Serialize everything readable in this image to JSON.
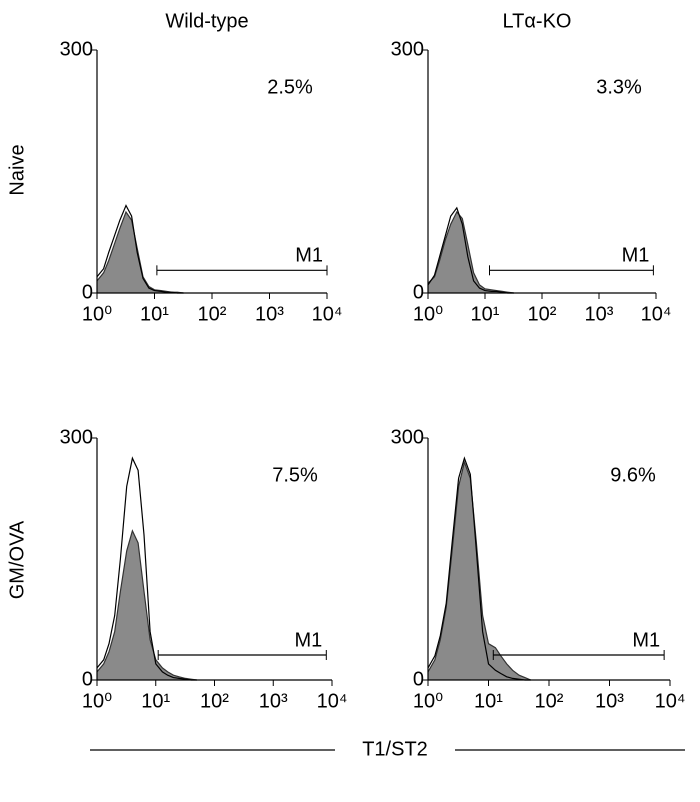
{
  "figure": {
    "row_labels": [
      "Naive",
      "GM/OVA"
    ],
    "x_axis_label": "T1/ST2"
  },
  "chart_data": [
    {
      "type": "histogram-overlay",
      "title": "Wild-type",
      "annotation": "2.5%",
      "xscale": "log",
      "xlim": [
        1,
        10000
      ],
      "ylim": [
        0,
        300
      ],
      "xticks": [
        {
          "value": 1,
          "label": "10⁰"
        },
        {
          "value": 10,
          "label": "10¹"
        },
        {
          "value": 100,
          "label": "10²"
        },
        {
          "value": 1000,
          "label": "10³"
        },
        {
          "value": 10000,
          "label": "10⁴"
        }
      ],
      "yticks": [
        0,
        300
      ],
      "gate": {
        "label": "M1",
        "range": [
          11,
          10000
        ],
        "y": 28
      },
      "x": [
        1,
        1.3,
        1.6,
        2,
        2.5,
        3.2,
        4,
        5,
        6.3,
        8,
        10,
        13,
        16,
        20,
        25,
        32
      ],
      "series": [
        {
          "color": "#8a8a8a",
          "filled": true,
          "values": [
            15,
            25,
            40,
            60,
            80,
            100,
            90,
            55,
            20,
            8,
            4,
            3,
            2,
            1,
            1,
            0
          ]
        },
        {
          "color": "#000000",
          "filled": false,
          "values": [
            20,
            30,
            50,
            70,
            90,
            108,
            95,
            50,
            18,
            6,
            3,
            2,
            1,
            1,
            0,
            0
          ]
        }
      ]
    },
    {
      "type": "histogram-overlay",
      "title": "LTα-KO",
      "annotation": "3.3%",
      "xscale": "log",
      "xlim": [
        1,
        10000
      ],
      "ylim": [
        0,
        300
      ],
      "xticks": [
        {
          "value": 1,
          "label": "10⁰"
        },
        {
          "value": 10,
          "label": "10¹"
        },
        {
          "value": 100,
          "label": "10²"
        },
        {
          "value": 1000,
          "label": "10³"
        },
        {
          "value": 10000,
          "label": "10⁴"
        }
      ],
      "yticks": [
        0,
        300
      ],
      "gate": {
        "label": "M1",
        "range": [
          12,
          9000
        ],
        "y": 28
      },
      "x": [
        1,
        1.3,
        1.6,
        2,
        2.5,
        3.2,
        4,
        5,
        6.3,
        8,
        10,
        13,
        16,
        20,
        25,
        32
      ],
      "series": [
        {
          "color": "#8a8a8a",
          "filled": true,
          "values": [
            12,
            20,
            40,
            65,
            85,
            100,
            92,
            60,
            25,
            10,
            5,
            4,
            3,
            2,
            1,
            0
          ]
        },
        {
          "color": "#000000",
          "filled": false,
          "values": [
            10,
            22,
            45,
            70,
            95,
            105,
            85,
            45,
            15,
            6,
            3,
            2,
            2,
            1,
            0,
            0
          ]
        }
      ]
    },
    {
      "type": "histogram-overlay",
      "annotation": "7.5%",
      "xscale": "log",
      "xlim": [
        1,
        10000
      ],
      "ylim": [
        0,
        300
      ],
      "xticks": [
        {
          "value": 1,
          "label": "10⁰"
        },
        {
          "value": 10,
          "label": "10¹"
        },
        {
          "value": 100,
          "label": "10²"
        },
        {
          "value": 1000,
          "label": "10³"
        },
        {
          "value": 10000,
          "label": "10⁴"
        }
      ],
      "yticks": [
        0,
        300
      ],
      "gate": {
        "label": "M1",
        "range": [
          11,
          8000
        ],
        "y": 31
      },
      "x": [
        1,
        1.3,
        1.6,
        2,
        2.5,
        3.2,
        4,
        5,
        6.3,
        8,
        10,
        13,
        16,
        20,
        25,
        32,
        40,
        50
      ],
      "series": [
        {
          "color": "#8a8a8a",
          "filled": true,
          "values": [
            10,
            20,
            35,
            60,
            110,
            160,
            185,
            170,
            110,
            50,
            25,
            15,
            10,
            6,
            4,
            2,
            1,
            0
          ]
        },
        {
          "color": "#000000",
          "filled": false,
          "values": [
            15,
            25,
            45,
            80,
            150,
            240,
            275,
            260,
            180,
            60,
            20,
            10,
            6,
            3,
            2,
            1,
            0,
            0
          ]
        }
      ]
    },
    {
      "type": "histogram-overlay",
      "annotation": "9.6%",
      "xscale": "log",
      "xlim": [
        1,
        10000
      ],
      "ylim": [
        0,
        300
      ],
      "xticks": [
        {
          "value": 1,
          "label": "10⁰"
        },
        {
          "value": 10,
          "label": "10¹"
        },
        {
          "value": 100,
          "label": "10²"
        },
        {
          "value": 1000,
          "label": "10³"
        },
        {
          "value": 10000,
          "label": "10⁴"
        }
      ],
      "yticks": [
        0,
        300
      ],
      "gate": {
        "label": "M1",
        "range": [
          12,
          8000
        ],
        "y": 31
      },
      "x": [
        1,
        1.3,
        1.6,
        2,
        2.5,
        3.2,
        4,
        5,
        6.3,
        8,
        10,
        13,
        16,
        20,
        25,
        32,
        40,
        50
      ],
      "series": [
        {
          "color": "#8a8a8a",
          "filled": true,
          "values": [
            10,
            25,
            50,
            90,
            160,
            240,
            270,
            250,
            170,
            80,
            45,
            40,
            30,
            20,
            12,
            6,
            3,
            0
          ]
        },
        {
          "color": "#000000",
          "filled": false,
          "values": [
            15,
            30,
            55,
            95,
            170,
            250,
            275,
            255,
            160,
            60,
            20,
            12,
            8,
            4,
            2,
            1,
            0,
            0
          ]
        }
      ]
    }
  ]
}
